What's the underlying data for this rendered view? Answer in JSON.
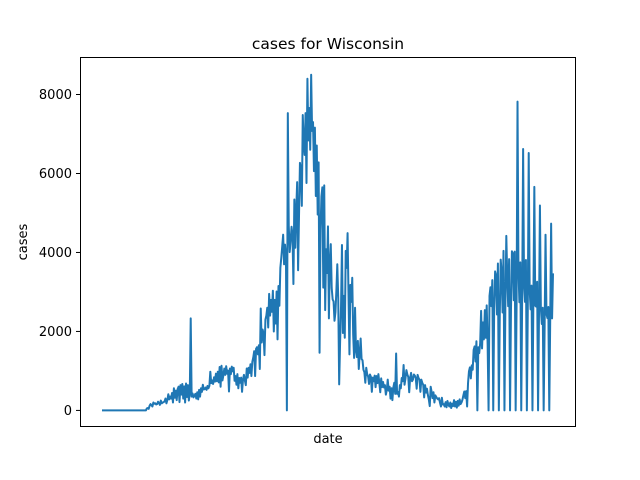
{
  "chart_data": {
    "type": "line",
    "title": "cases for Wisconsin",
    "xlabel": "date",
    "ylabel": "cases",
    "ylim": [
      -420,
      8950
    ],
    "yticks": [
      0,
      2000,
      4000,
      6000,
      8000
    ],
    "grid": false,
    "x_tick_labels_shown": false,
    "series": [
      {
        "color": "#1f77b4",
        "values": [
          0,
          0,
          0,
          0,
          0,
          0,
          0,
          0,
          0,
          0,
          0,
          0,
          0,
          0,
          0,
          0,
          0,
          0,
          0,
          0,
          0,
          0,
          0,
          0,
          0,
          0,
          0,
          0,
          0,
          0,
          0,
          0,
          0,
          0,
          0,
          0,
          0,
          0,
          0,
          0,
          0,
          0,
          0,
          0,
          0,
          0,
          0,
          0,
          50,
          60,
          40,
          120,
          160,
          130,
          100,
          200,
          170,
          180,
          150,
          160,
          220,
          190,
          140,
          250,
          180,
          200,
          210,
          230,
          300,
          180,
          260,
          410,
          280,
          350,
          300,
          440,
          200,
          560,
          320,
          500,
          260,
          540,
          600,
          210,
          640,
          400,
          670,
          300,
          610,
          200,
          680,
          340,
          640,
          250,
          420,
          2330,
          350,
          430,
          330,
          370,
          420,
          300,
          460,
          280,
          520,
          350,
          560,
          470,
          650,
          530,
          540,
          580,
          520,
          620,
          560,
          620,
          980,
          690,
          760,
          670,
          840,
          730,
          930,
          740,
          980,
          710,
          1100,
          600,
          1130,
          760,
          890,
          1060,
          900,
          1120,
          930,
          1010,
          480,
          1060,
          920,
          1110,
          990,
          1080,
          750,
          870,
          650,
          920,
          560,
          820,
          700,
          830,
          470,
          780,
          900,
          760,
          640,
          1060,
          830,
          1080,
          950,
          1170,
          870,
          1230,
          1340,
          1500,
          870,
          1560,
          1600,
          1420,
          1650,
          1050,
          2580,
          1720,
          2050,
          1950,
          1400,
          2300,
          2400,
          2600,
          2100,
          2950,
          2400,
          2800,
          2500,
          3030,
          2000,
          2800,
          2200,
          3010,
          1800,
          3150,
          2650,
          3610,
          3860,
          4150,
          4450,
          3700,
          4200,
          3920,
          0,
          7530,
          4680,
          4010,
          4300,
          4650,
          4450,
          3200,
          5340,
          4120,
          5050,
          5780,
          3550,
          4950,
          6270,
          6100,
          5180,
          7480,
          6780,
          6470,
          7530,
          5760,
          8400,
          6840,
          7660,
          6600,
          8500,
          7080,
          7300,
          6060,
          7160,
          5430,
          6710,
          4960,
          6280,
          1460,
          4560,
          5420,
          5650,
          3110,
          5700,
          2540,
          4080,
          3480,
          4660,
          2330,
          3710,
          4210,
          3100,
          2810,
          2760,
          2270,
          2490,
          3030,
          3700,
          2840,
          660,
          1740,
          2640,
          4190,
          1960,
          2900,
          1840,
          4040,
          3610,
          4490,
          2930,
          1420,
          3180,
          2750,
          3360,
          1920,
          1330,
          2600,
          1520,
          1350,
          1760,
          1050,
          1440,
          1820,
          1300,
          1270,
          1030,
          970,
          700,
          1080,
          920,
          860,
          670,
          910,
          850,
          470,
          830,
          740,
          880,
          590,
          870,
          690,
          920,
          700,
          460,
          810,
          590,
          720,
          580,
          640,
          400,
          520,
          780,
          500,
          600,
          300,
          560,
          260,
          580,
          700,
          420,
          1440,
          420,
          470,
          350,
          640,
          560,
          820,
          740,
          1150,
          650,
          810,
          1020,
          910,
          850,
          460,
          820,
          950,
          740,
          780,
          910,
          880,
          820,
          550,
          900,
          820,
          780,
          470,
          780,
          700,
          650,
          330,
          640,
          450,
          550,
          390,
          280,
          110,
          600,
          470,
          310,
          460,
          200,
          380,
          340,
          300,
          280,
          310,
          190,
          100,
          320,
          150,
          160,
          100,
          210,
          80,
          240,
          140,
          100,
          200,
          60,
          170,
          110,
          260,
          100,
          220,
          70,
          240,
          120,
          280,
          160,
          200,
          270,
          380,
          480,
          310,
          490,
          100,
          690,
          990,
          1090,
          810,
          1140,
          1030,
          1530,
          1620,
          1240,
          1750,
          0,
          1600,
          1450,
          1700,
          2520,
          1570,
          2230,
          1800,
          2540,
          1840,
          2660,
          1660,
          0,
          2900,
          3120,
          2640,
          3300,
          0,
          2570,
          3520,
          3420,
          2430,
          3720,
          0,
          2420,
          3820,
          3500,
          2480,
          4040,
          0,
          2680,
          4420,
          3390,
          2640,
          3830,
          0,
          2560,
          4030,
          3980,
          2790,
          4020,
          0,
          2660,
          7820,
          3570,
          2740,
          3750,
          0,
          2940,
          6620,
          3170,
          2750,
          3810,
          0,
          2580,
          6520,
          3060,
          2560,
          3160,
          0,
          2830,
          5660,
          2650,
          2630,
          3260,
          0,
          2420,
          5190,
          2590,
          2190,
          2600,
          0,
          2040,
          4450,
          2450,
          2340,
          2620,
          0,
          2270,
          4730,
          2330,
          3470
        ]
      }
    ]
  }
}
